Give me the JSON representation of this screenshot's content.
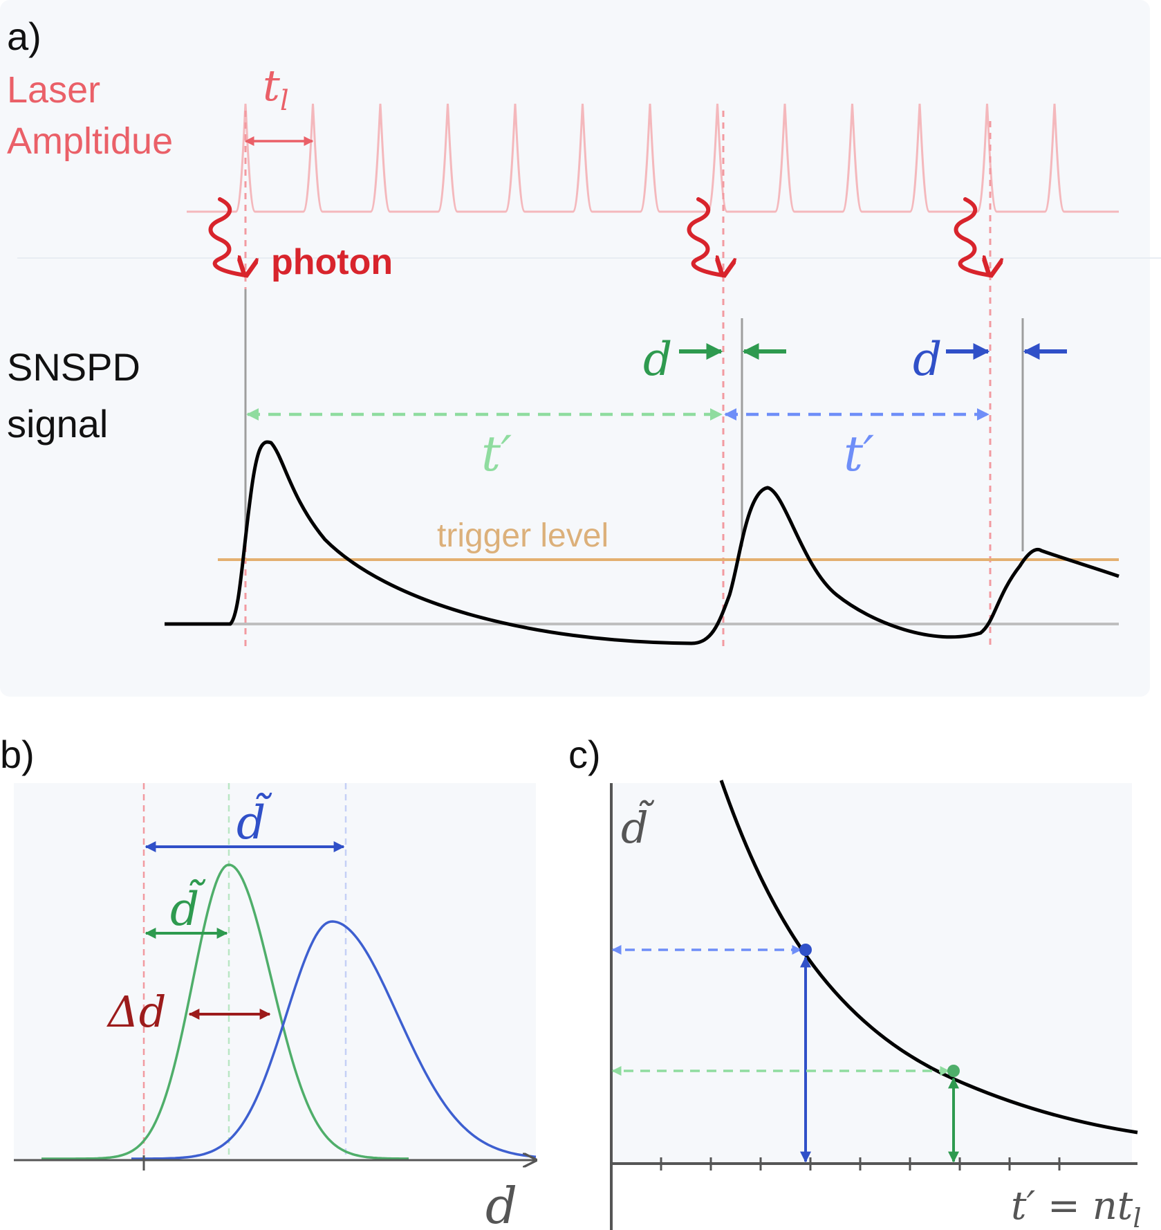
{
  "panel_a": {
    "label": "a)",
    "laser_label_line1": "Laser",
    "laser_label_line2": "Ampltidue",
    "period_label": "t",
    "period_sub": "l",
    "photon_label": "photon",
    "signal_label_line1": "SNSPD",
    "signal_label_line2": "signal",
    "d_label": "d",
    "tprime_label": "t′",
    "trigger_label": "trigger level"
  },
  "panel_b": {
    "label": "b)",
    "dtilde_label": "d̃",
    "delta_d_label": "Δd",
    "x_axis_label": "d"
  },
  "panel_c": {
    "label": "c)",
    "y_axis_label": "d̃",
    "x_axis_label": "t′ = nt",
    "x_axis_sub": "l"
  },
  "colors": {
    "laser": "#f4b8bc",
    "laser_text": "#ea6068",
    "photon": "#d8242c",
    "green_dark": "#2e9a4f",
    "green_light": "#8fdc9f",
    "blue_dark": "#3050c8",
    "blue_light": "#6e8ef8",
    "dark_red": "#9c1b1b",
    "trigger": "#e4b070",
    "trigger_text": "#dcb07a",
    "panel_bg": "#f6f8fb"
  }
}
